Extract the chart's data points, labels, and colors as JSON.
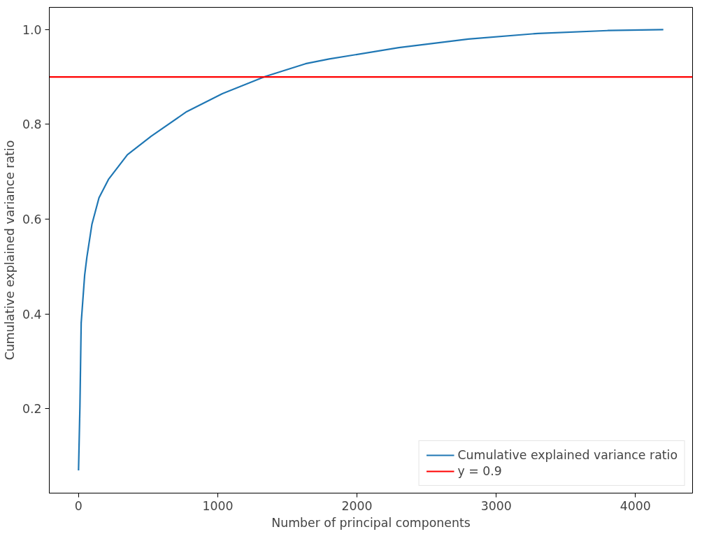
{
  "chart_data": {
    "type": "line",
    "xlabel": "Number of principal components",
    "ylabel": "Cumulative explained variance ratio",
    "x": [
      0,
      10,
      19,
      44,
      60,
      96,
      147,
      215,
      351,
      522,
      777,
      1033,
      1340,
      1630,
      1800,
      2300,
      2800,
      3300,
      3800,
      4200
    ],
    "series": [
      {
        "name": "Cumulative explained variance ratio",
        "color": "#1f77b4",
        "values": [
          0.07,
          0.205,
          0.381,
          0.482,
          0.52,
          0.589,
          0.645,
          0.684,
          0.736,
          0.775,
          0.827,
          0.865,
          0.901,
          0.928,
          0.938,
          0.962,
          0.98,
          0.992,
          0.998,
          1.0
        ]
      }
    ],
    "ref_lines": [
      {
        "axis": "y",
        "value": 0.9,
        "label": "y = 0.9",
        "color": "#ff0000"
      }
    ],
    "xlim": [
      -210,
      4410
    ],
    "ylim": [
      0.022,
      1.047
    ],
    "xticks": [
      0,
      1000,
      2000,
      3000,
      4000
    ],
    "yticks": [
      {
        "value": 0.2,
        "label": "0.2"
      },
      {
        "value": 0.4,
        "label": "0.4"
      },
      {
        "value": 0.6,
        "label": "0.6"
      },
      {
        "value": 0.8,
        "label": "0.8"
      },
      {
        "value": 1.0,
        "label": "1.0"
      }
    ],
    "grid": false,
    "legend": "bottom right"
  }
}
